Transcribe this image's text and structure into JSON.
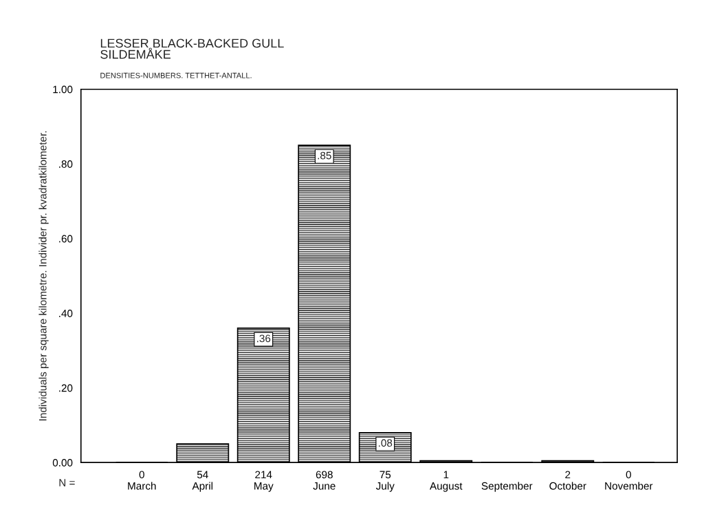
{
  "chart_data": {
    "type": "bar",
    "title": "LESSER BLACK-BACKED GULL\nSILDEMÅKE",
    "subtitle": "DENSITIES-NUMBERS. TETTHET-ANTALL.",
    "ylabel": "Individuals per square kilometre. Individer pr. kvadratkilometer.",
    "categories": [
      "0\nMarch",
      "54\nApril",
      "214\nMay",
      "698\nJune",
      "75\nJuly",
      "1\nAugust",
      "\nSeptember",
      "2\nOctober",
      "0\nNovember"
    ],
    "values": [
      0,
      0.05,
      0.36,
      0.85,
      0.08,
      0.005,
      0,
      0.005,
      0
    ],
    "value_labels": [
      null,
      null,
      ".36",
      ".85",
      ".08",
      null,
      null,
      null,
      null
    ],
    "color": "#000000",
    "annotations": [
      "N ="
    ],
    "ylim": [
      0,
      1
    ],
    "yticks": [
      {
        "value": 0,
        "label": "0.00"
      },
      {
        "value": 0.2,
        "label": ".20"
      },
      {
        "value": 0.4,
        "label": ".40"
      },
      {
        "value": 0.6,
        "label": ".60"
      },
      {
        "value": 0.8,
        "label": ".80"
      },
      {
        "value": 1,
        "label": "1.00"
      }
    ],
    "grid": false,
    "legend": false
  }
}
